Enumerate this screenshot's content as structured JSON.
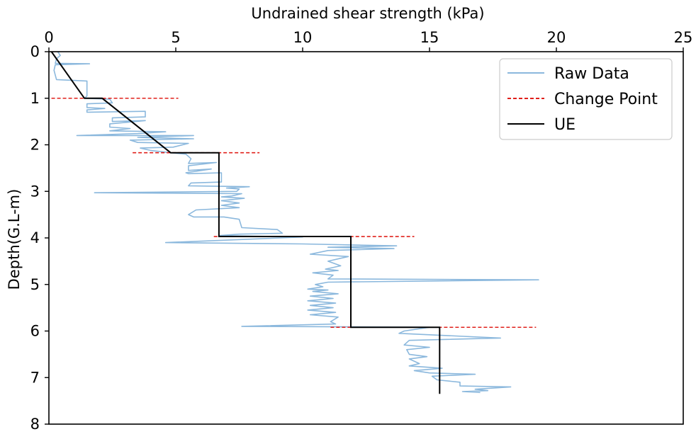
{
  "chart_data": {
    "type": "line",
    "xlabel": "Undrained shear strength (kPa)",
    "ylabel": "Depth(G.L-m)",
    "xlim": [
      0,
      25
    ],
    "ylim": [
      8,
      0
    ],
    "x_axis_position": "top",
    "y_inverted": true,
    "xticks": [
      0,
      5,
      10,
      15,
      20,
      25
    ],
    "yticks": [
      0,
      1,
      2,
      3,
      4,
      5,
      6,
      7,
      8
    ],
    "grid": false,
    "legend_position": "top-right",
    "legend": [
      "Raw Data",
      "Change Point",
      "UE"
    ],
    "colors": {
      "raw": "#8bb8dd",
      "change": "#e0201b",
      "ue": "#000000"
    },
    "series": [
      {
        "name": "Raw Data",
        "style": "solid",
        "points": [
          [
            0.35,
            0.0
          ],
          [
            0.45,
            0.08
          ],
          [
            0.3,
            0.15
          ],
          [
            0.25,
            0.25
          ],
          [
            1.6,
            0.26
          ],
          [
            0.25,
            0.28
          ],
          [
            0.2,
            0.4
          ],
          [
            0.3,
            0.6
          ],
          [
            1.5,
            0.63
          ],
          [
            1.5,
            0.95
          ],
          [
            1.4,
            1.0
          ],
          [
            2.4,
            1.02
          ],
          [
            2.5,
            1.1
          ],
          [
            1.5,
            1.12
          ],
          [
            1.5,
            1.2
          ],
          [
            2.2,
            1.22
          ],
          [
            1.5,
            1.25
          ],
          [
            1.5,
            1.3
          ],
          [
            3.8,
            1.28
          ],
          [
            3.8,
            1.4
          ],
          [
            2.5,
            1.42
          ],
          [
            2.5,
            1.5
          ],
          [
            3.8,
            1.48
          ],
          [
            2.4,
            1.55
          ],
          [
            2.4,
            1.62
          ],
          [
            3.2,
            1.65
          ],
          [
            2.4,
            1.7
          ],
          [
            4.6,
            1.72
          ],
          [
            3.5,
            1.76
          ],
          [
            1.1,
            1.8
          ],
          [
            5.7,
            1.8
          ],
          [
            3.5,
            1.84
          ],
          [
            5.7,
            1.87
          ],
          [
            3.2,
            1.9
          ],
          [
            3.5,
            1.95
          ],
          [
            5.5,
            1.97
          ],
          [
            4.9,
            2.05
          ],
          [
            3.6,
            2.07
          ],
          [
            4.0,
            2.12
          ],
          [
            4.8,
            2.17
          ],
          [
            5.4,
            2.2
          ],
          [
            5.6,
            2.3
          ],
          [
            5.5,
            2.4
          ],
          [
            6.6,
            2.38
          ],
          [
            5.5,
            2.45
          ],
          [
            5.5,
            2.55
          ],
          [
            6.4,
            2.52
          ],
          [
            5.4,
            2.6
          ],
          [
            5.5,
            2.62
          ],
          [
            6.8,
            2.6
          ],
          [
            6.8,
            2.8
          ],
          [
            5.6,
            2.82
          ],
          [
            5.5,
            2.88
          ],
          [
            7.9,
            2.9
          ],
          [
            7.0,
            2.93
          ],
          [
            7.5,
            2.95
          ],
          [
            7.4,
            3.0
          ],
          [
            1.8,
            3.03
          ],
          [
            7.6,
            3.05
          ],
          [
            7.2,
            3.1
          ],
          [
            6.8,
            3.12
          ],
          [
            7.7,
            3.15
          ],
          [
            6.8,
            3.2
          ],
          [
            7.5,
            3.25
          ],
          [
            6.8,
            3.3
          ],
          [
            7.5,
            3.35
          ],
          [
            5.8,
            3.4
          ],
          [
            5.5,
            3.5
          ],
          [
            5.7,
            3.55
          ],
          [
            6.9,
            3.55
          ],
          [
            7.5,
            3.6
          ],
          [
            7.6,
            3.78
          ],
          [
            9.0,
            3.82
          ],
          [
            9.2,
            3.9
          ],
          [
            7.5,
            3.92
          ],
          [
            6.7,
            3.95
          ],
          [
            10.0,
            3.98
          ],
          [
            4.6,
            4.1
          ],
          [
            10.0,
            4.13
          ],
          [
            13.7,
            4.17
          ],
          [
            11.0,
            4.2
          ],
          [
            13.6,
            4.23
          ],
          [
            11.0,
            4.27
          ],
          [
            10.3,
            4.35
          ],
          [
            11.8,
            4.4
          ],
          [
            11.0,
            4.5
          ],
          [
            11.5,
            4.6
          ],
          [
            10.9,
            4.67
          ],
          [
            11.4,
            4.7
          ],
          [
            10.4,
            4.75
          ],
          [
            11.2,
            4.8
          ],
          [
            11.0,
            4.88
          ],
          [
            19.3,
            4.9
          ],
          [
            11.0,
            4.95
          ],
          [
            10.5,
            5.0
          ],
          [
            10.8,
            5.05
          ],
          [
            10.2,
            5.1
          ],
          [
            11.0,
            5.12
          ],
          [
            10.4,
            5.15
          ],
          [
            11.4,
            5.2
          ],
          [
            10.3,
            5.25
          ],
          [
            11.2,
            5.3
          ],
          [
            10.2,
            5.35
          ],
          [
            11.3,
            5.4
          ],
          [
            10.3,
            5.45
          ],
          [
            11.2,
            5.5
          ],
          [
            10.2,
            5.55
          ],
          [
            11.3,
            5.6
          ],
          [
            10.3,
            5.65
          ],
          [
            11.4,
            5.7
          ],
          [
            11.1,
            5.8
          ],
          [
            11.3,
            5.85
          ],
          [
            7.6,
            5.9
          ],
          [
            15.0,
            5.92
          ],
          [
            14.0,
            6.0
          ],
          [
            13.8,
            6.05
          ],
          [
            17.8,
            6.15
          ],
          [
            14.2,
            6.2
          ],
          [
            14.0,
            6.3
          ],
          [
            15.0,
            6.35
          ],
          [
            14.1,
            6.4
          ],
          [
            14.2,
            6.5
          ],
          [
            14.9,
            6.55
          ],
          [
            14.2,
            6.6
          ],
          [
            14.6,
            6.7
          ],
          [
            14.2,
            6.75
          ],
          [
            15.5,
            6.8
          ],
          [
            14.4,
            6.85
          ],
          [
            15.0,
            6.9
          ],
          [
            16.8,
            6.93
          ],
          [
            15.1,
            6.97
          ],
          [
            15.3,
            7.05
          ],
          [
            16.2,
            7.1
          ],
          [
            16.2,
            7.18
          ],
          [
            18.2,
            7.2
          ],
          [
            16.8,
            7.25
          ],
          [
            17.3,
            7.28
          ],
          [
            16.3,
            7.3
          ],
          [
            17.0,
            7.32
          ]
        ]
      },
      {
        "name": "Change Point",
        "style": "dashed",
        "segments": [
          {
            "depth": 1.0,
            "x": [
              0.1,
              5.1
            ]
          },
          {
            "depth": 2.17,
            "x": [
              3.3,
              8.3
            ]
          },
          {
            "depth": 3.97,
            "x": [
              6.5,
              14.4
            ]
          },
          {
            "depth": 5.92,
            "x": [
              11.1,
              19.2
            ]
          }
        ]
      },
      {
        "name": "UE",
        "style": "solid",
        "points": [
          [
            0.1,
            0.0
          ],
          [
            1.4,
            1.0
          ],
          [
            2.1,
            1.0
          ],
          [
            4.8,
            2.17
          ],
          [
            6.7,
            2.17
          ],
          [
            6.7,
            3.97
          ],
          [
            11.9,
            3.97
          ],
          [
            11.9,
            5.92
          ],
          [
            15.4,
            5.92
          ],
          [
            15.4,
            7.35
          ]
        ]
      }
    ]
  }
}
